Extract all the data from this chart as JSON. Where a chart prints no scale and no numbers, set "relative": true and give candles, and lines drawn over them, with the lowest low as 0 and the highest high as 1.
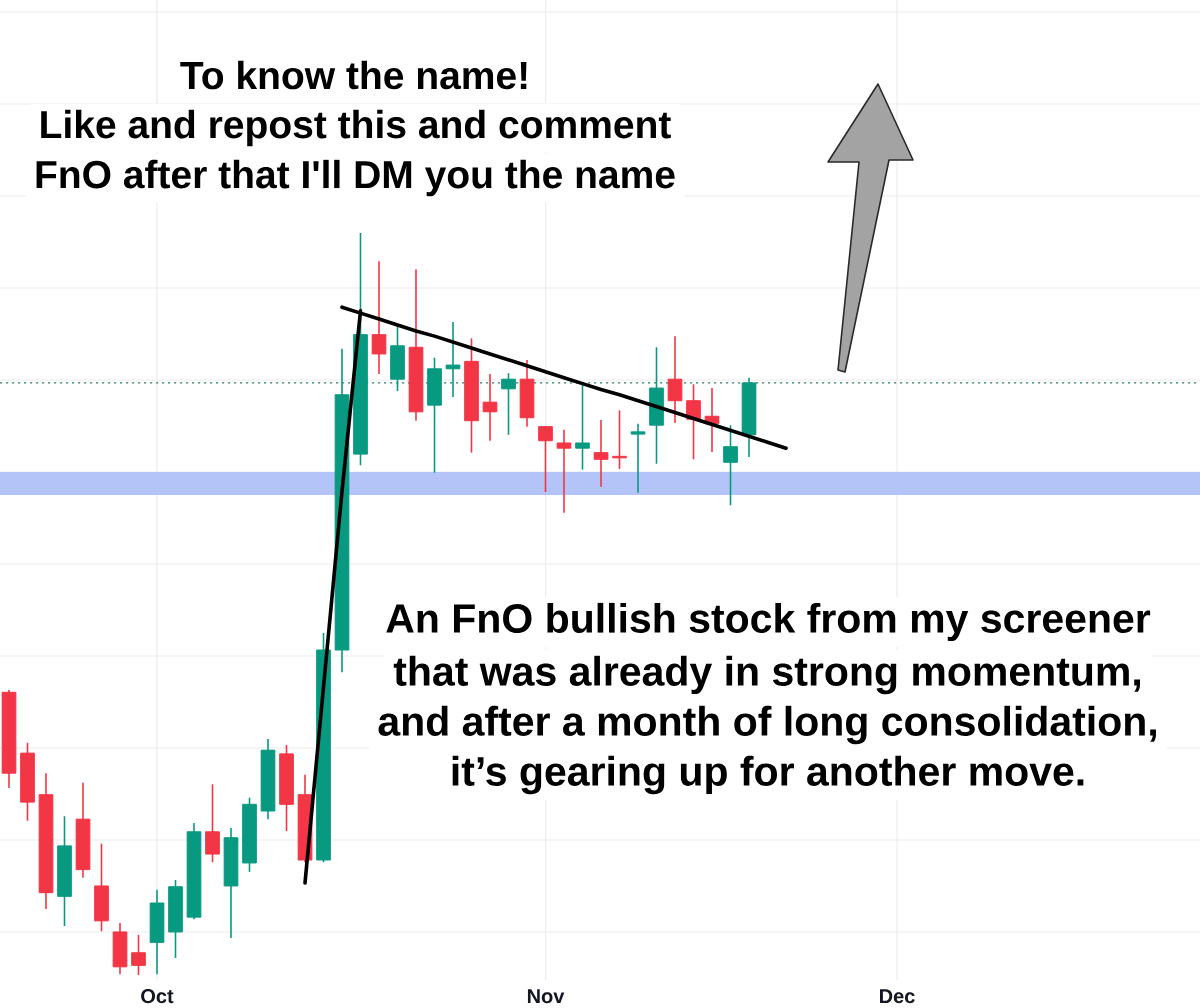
{
  "chart_data": {
    "type": "candlestick",
    "relative": true,
    "grid": true,
    "tick_labels": "x",
    "categories": [
      null,
      null,
      null,
      null,
      null,
      null,
      null,
      null,
      "Oct",
      null,
      null,
      null,
      null,
      null,
      null,
      null,
      null,
      null,
      null,
      null,
      null,
      null,
      null,
      null,
      null,
      null,
      null,
      null,
      null,
      "Nov",
      null,
      null,
      null,
      null,
      null,
      null,
      null,
      null,
      null,
      null,
      null,
      null,
      null,
      null,
      null,
      null,
      null,
      null,
      "Dec"
    ],
    "ohlc": [
      [
        0.381,
        0.384,
        0.252,
        0.272
      ],
      [
        0.299,
        0.313,
        0.208,
        0.233
      ],
      [
        0.243,
        0.272,
        0.089,
        0.111
      ],
      [
        0.106,
        0.214,
        0.066,
        0.174
      ],
      [
        0.21,
        0.259,
        0.131,
        0.142
      ],
      [
        0.12,
        0.177,
        0.059,
        0.073
      ],
      [
        0.058,
        0.07,
        0.001,
        0.011
      ],
      [
        0.03,
        0.054,
        0,
        0.013
      ],
      [
        0.044,
        0.115,
        0.001,
        0.097
      ],
      [
        0.058,
        0.128,
        0.023,
        0.119
      ],
      [
        0.078,
        0.205,
        0.075,
        0.193
      ],
      [
        0.193,
        0.257,
        0.152,
        0.163
      ],
      [
        0.12,
        0.198,
        0.05,
        0.185
      ],
      [
        0.151,
        0.239,
        0.139,
        0.23
      ],
      [
        0.221,
        0.318,
        0.21,
        0.303
      ],
      [
        0.298,
        0.31,
        0.194,
        0.23
      ],
      [
        0.243,
        0.27,
        0.152,
        0.155
      ],
      [
        0.155,
        0.461,
        0.152,
        0.438
      ],
      [
        0.438,
        0.844,
        0.408,
        0.782
      ],
      [
        0.702,
        1,
        0.687,
        0.863
      ],
      [
        0.863,
        0.962,
        0.81,
        0.837
      ],
      [
        0.803,
        0.877,
        0.787,
        0.848
      ],
      [
        0.846,
        0.951,
        0.747,
        0.759
      ],
      [
        0.768,
        0.832,
        0.677,
        0.817
      ],
      [
        0.817,
        0.88,
        0.779,
        0.822
      ],
      [
        0.827,
        0.858,
        0.704,
        0.747
      ],
      [
        0.772,
        0.81,
        0.72,
        0.759
      ],
      [
        0.79,
        0.811,
        0.728,
        0.803
      ],
      [
        0.803,
        0.829,
        0.739,
        0.751
      ],
      [
        0.739,
        0.74,
        0.651,
        0.72
      ],
      [
        0.717,
        0.735,
        0.623,
        0.71
      ],
      [
        0.71,
        0.798,
        0.681,
        0.717
      ],
      [
        0.704,
        0.748,
        0.658,
        0.695
      ],
      [
        0.699,
        0.761,
        0.682,
        0.697
      ],
      [
        0.729,
        0.743,
        0.65,
        0.732
      ],
      [
        0.741,
        0.846,
        0.689,
        0.791
      ],
      [
        0.803,
        0.861,
        0.744,
        0.774
      ],
      [
        0.774,
        0.796,
        0.695,
        0.749
      ],
      [
        0.753,
        0.791,
        0.705,
        0.743
      ],
      [
        0.691,
        0.741,
        0.633,
        0.712
      ],
      [
        0.728,
        0.805,
        0.698,
        0.798
      ],
      null,
      null,
      null,
      null,
      null,
      null,
      null,
      null
    ],
    "colors": [
      "#f23645",
      "#f23645",
      "#f23645",
      "#089981",
      "#f23645",
      "#f23645",
      "#f23645",
      "#f23645",
      "#089981",
      "#089981",
      "#089981",
      "#f23645",
      "#089981",
      "#089981",
      "#089981",
      "#f23645",
      "#f23645",
      "#089981",
      "#089981",
      "#089981",
      "#f23645",
      "#089981",
      "#f23645",
      "#089981",
      "#089981",
      "#f23645",
      "#f23645",
      "#089981",
      "#f23645",
      "#f23645",
      "#f23645",
      "#089981",
      "#f23645",
      "#f23645",
      "#089981",
      "#089981",
      "#f23645",
      "#f23645",
      "#f23645",
      "#089981",
      "#089981",
      null,
      null,
      null,
      null,
      null,
      null,
      null,
      null
    ],
    "series": [
      {
        "type": "line",
        "color": "#000000",
        "values": [
          null,
          null,
          null,
          null,
          null,
          null,
          null,
          null,
          null,
          null,
          null,
          null,
          null,
          null,
          null,
          null,
          0.124,
          0.388,
          0.652,
          0.895,
          null,
          null,
          null,
          null,
          null,
          null,
          null,
          null,
          null,
          null,
          null,
          null,
          null,
          null,
          null,
          null,
          null,
          null,
          null,
          null,
          null,
          null,
          null,
          null,
          null,
          null,
          null,
          null,
          null
        ]
      },
      {
        "type": "line",
        "color": "#000000",
        "values": [
          null,
          null,
          null,
          null,
          null,
          null,
          null,
          null,
          null,
          null,
          null,
          null,
          null,
          null,
          null,
          null,
          null,
          null,
          0.9,
          0.892,
          0.884,
          0.876,
          0.868,
          0.861,
          0.853,
          0.845,
          0.837,
          0.829,
          0.821,
          0.813,
          0.805,
          0.797,
          0.789,
          0.782,
          0.774,
          0.766,
          0.758,
          0.75,
          0.742,
          0.734,
          0.726,
          0.718,
          0.71,
          null,
          null,
          null,
          null,
          null,
          null
        ]
      }
    ],
    "ref_lines": [
      {
        "axis": "y",
        "value": 0.798,
        "color": "#2e7d6f",
        "line_style": "dotted"
      }
    ],
    "bands": [
      {
        "axis": "y",
        "from": 0.647,
        "to": 0.678,
        "color": "#b4c3f8"
      }
    ],
    "annotations": [
      "To know the name!",
      "Like and repost this and comment",
      "FnO after that I'll DM you the name",
      "An FnO bullish stock from my screener",
      "that was already in strong momentum,",
      "and after a month of long consolidation,",
      "it’s gearing up for another move."
    ]
  }
}
